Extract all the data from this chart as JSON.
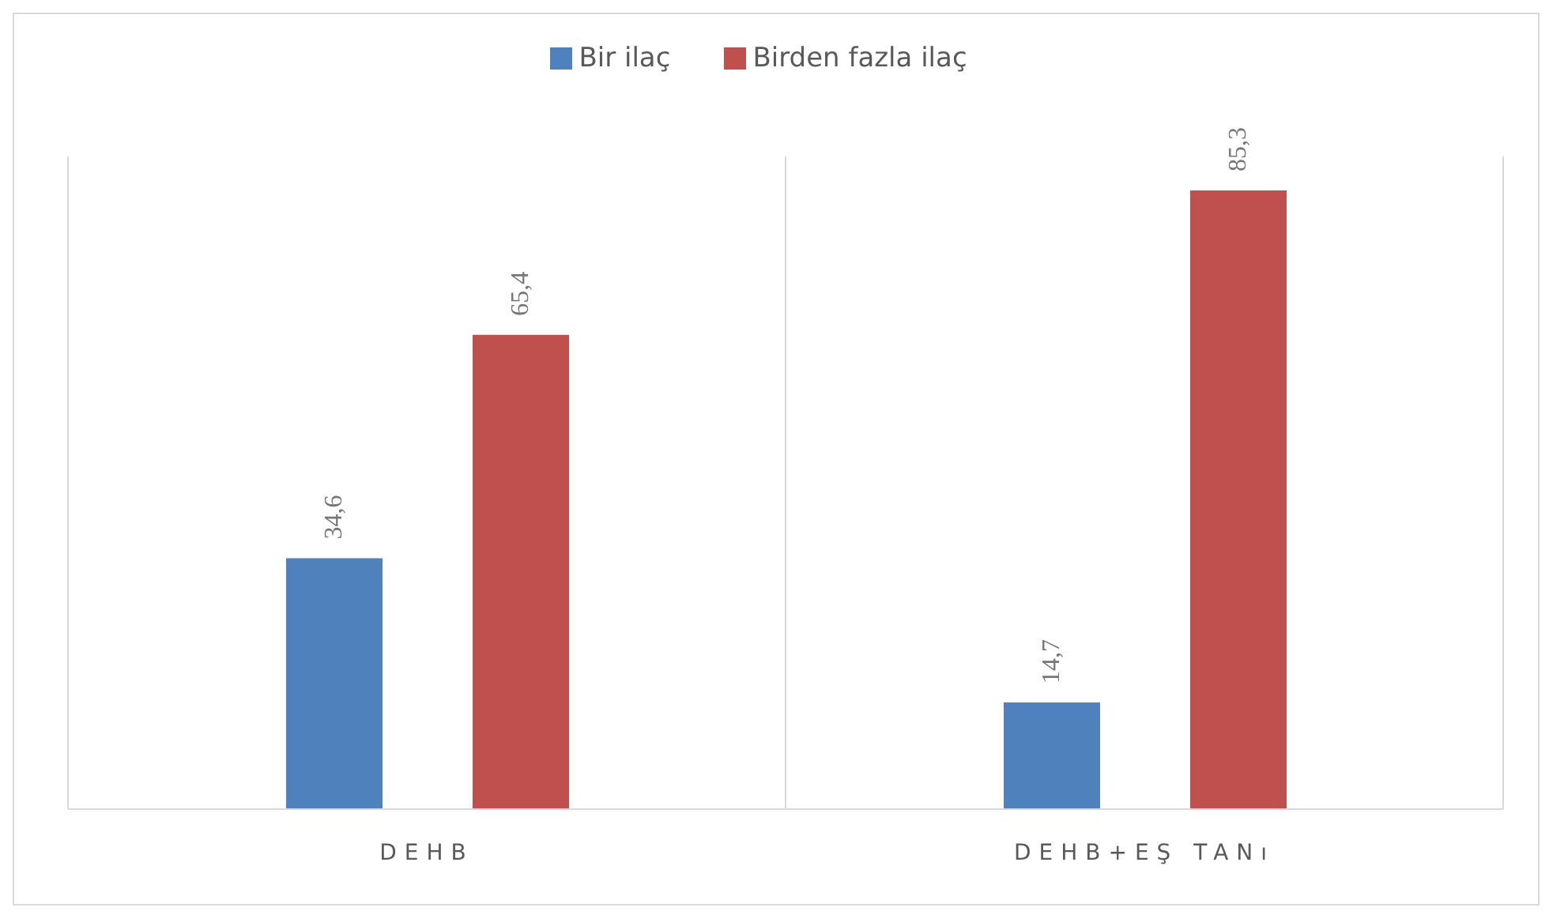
{
  "chart_data": {
    "type": "bar",
    "categories": [
      "DEHB",
      "DEHB+EŞ TANı"
    ],
    "series": [
      {
        "name": "Bir ilaç",
        "color": "#4f81bd",
        "values": [
          34.6,
          14.7
        ],
        "value_labels": [
          "34,6",
          "14,7"
        ]
      },
      {
        "name": "Birden fazla ilaç",
        "color": "#c0504d",
        "values": [
          65.4,
          85.3
        ],
        "value_labels": [
          "65,4",
          "85,3"
        ]
      }
    ],
    "grid": "x",
    "legend": "top"
  }
}
